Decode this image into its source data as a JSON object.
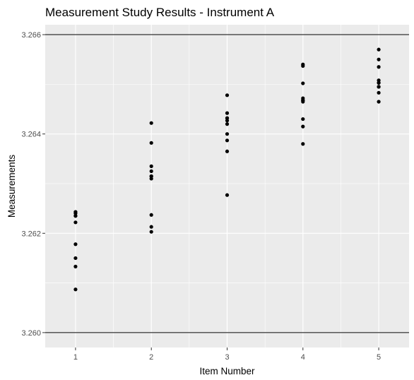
{
  "chart_data": {
    "type": "scatter",
    "title": "Measurement Study Results - Instrument A",
    "xlabel": "Item Number",
    "ylabel": "Measurements",
    "x_ticks": [
      "1",
      "2",
      "3",
      "4",
      "5"
    ],
    "y_ticks": [
      "3.260",
      "3.262",
      "3.264",
      "3.266"
    ],
    "xlim": [
      0.6,
      5.4
    ],
    "ylim": [
      3.2597,
      3.2662
    ],
    "grid": true,
    "reference_lines": [
      3.26,
      3.266
    ],
    "background_color": "#ebebeb",
    "point_color": "#000000",
    "series": [
      {
        "x": [
          1,
          1,
          1,
          1,
          1,
          1,
          1,
          1,
          1,
          1,
          2,
          2,
          2,
          2,
          2,
          2,
          2,
          2,
          2,
          2,
          3,
          3,
          3,
          3,
          3,
          3,
          3,
          3,
          3,
          3,
          4,
          4,
          4,
          4,
          4,
          4,
          4,
          4,
          4,
          4,
          5,
          5,
          5,
          5,
          5,
          5,
          5,
          5,
          5,
          5
        ],
        "y": [
          3.26243,
          3.2624,
          3.26235,
          3.26222,
          3.26178,
          3.2615,
          3.26133,
          3.26087,
          3.26243,
          3.26235,
          3.26422,
          3.26382,
          3.26335,
          3.26325,
          3.26315,
          3.2631,
          3.26237,
          3.26213,
          3.26203,
          3.26315,
          3.26478,
          3.26442,
          3.26432,
          3.26427,
          3.2642,
          3.264,
          3.26387,
          3.26365,
          3.26277,
          3.26432,
          3.2654,
          3.26537,
          3.26502,
          3.26472,
          3.26468,
          3.26465,
          3.2643,
          3.26415,
          3.2638,
          3.26468,
          3.2657,
          3.2655,
          3.26535,
          3.26508,
          3.26503,
          3.26495,
          3.26483,
          3.26465,
          3.26503,
          3.26495
        ]
      }
    ]
  }
}
